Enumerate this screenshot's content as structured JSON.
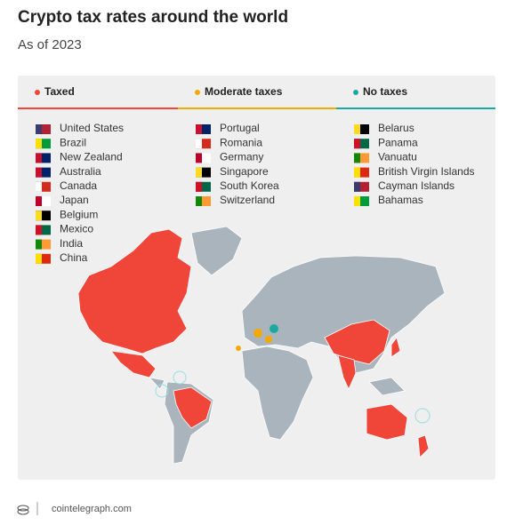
{
  "header": {
    "title": "Crypto tax rates around the world",
    "subtitle": "As of 2023"
  },
  "legend": {
    "columns": [
      {
        "heading": "Taxed",
        "color": "#f0463a",
        "countries": [
          "United States",
          "Brazil",
          "New Zealand",
          "Australia",
          "Canada",
          "Japan",
          "Belgium",
          "Mexico",
          "India",
          "China"
        ]
      },
      {
        "heading": "Moderate taxes",
        "color": "#f2a900",
        "countries": [
          "Portugal",
          "Romania",
          "Germany",
          "Singapore",
          "South Korea",
          "Switzerland"
        ]
      },
      {
        "heading": "No taxes",
        "color": "#1aa9a0",
        "countries": [
          "Belarus",
          "Panama",
          "Vanuatu",
          "British Virgin Islands",
          "Cayman Islands",
          "Bahamas"
        ]
      }
    ]
  },
  "footer": {
    "source": "cointelegraph.com"
  }
}
